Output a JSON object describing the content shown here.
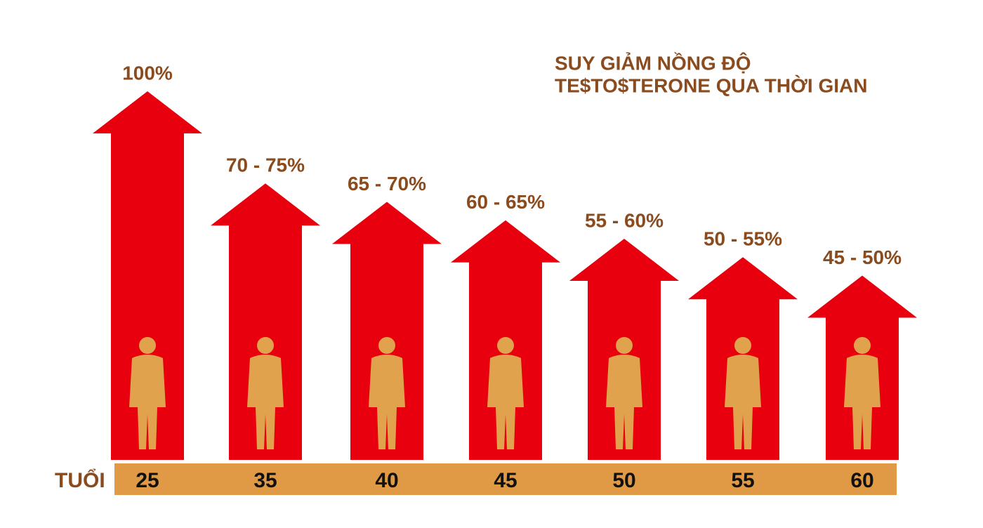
{
  "chart_data": {
    "type": "arrow",
    "title": [
      "SUY GIẢM NỒNG ĐỘ",
      "TE$TO$TERONE QUA THỜI GIAN"
    ],
    "xlabel": "TUỔI",
    "categories": [
      "25",
      "35",
      "40",
      "45",
      "50",
      "55",
      "60"
    ],
    "values": [
      [
        100
      ],
      [
        70,
        75
      ],
      [
        65,
        70
      ],
      [
        60,
        65
      ],
      [
        55,
        60
      ],
      [
        50,
        55
      ],
      [
        45,
        50
      ]
    ],
    "value_labels": [
      "100%",
      "70 - 75%",
      "65 - 70%",
      "60 - 65%",
      "55 - 60%",
      "50 - 55%",
      "45 - 50%"
    ],
    "color": "#e8000e"
  }
}
